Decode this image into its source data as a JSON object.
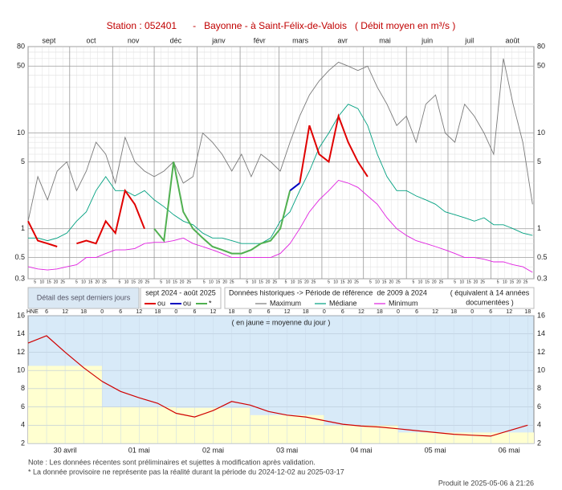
{
  "title": "Station : 052401      -   Bayonne - à Saint-Félix-de-Valois   ( Débit moyen en m³/s )",
  "chart_data": [
    {
      "type": "line",
      "log_scale": true,
      "grid": true,
      "xlim": [
        0,
        365
      ],
      "ylim": [
        0.3,
        80
      ],
      "yticks": [
        0.3,
        0.5,
        1,
        5,
        10,
        50,
        80
      ],
      "minor_yticks": [
        0.4,
        0.6,
        0.7,
        0.8,
        0.9,
        2,
        3,
        4,
        6,
        7,
        8,
        9,
        20,
        30,
        40,
        60,
        70
      ],
      "xticks": [
        {
          "value": 0,
          "label": "sept"
        },
        {
          "value": 30,
          "label": "oct"
        },
        {
          "value": 61,
          "label": "nov"
        },
        {
          "value": 91,
          "label": "déc"
        },
        {
          "value": 122,
          "label": "janv"
        },
        {
          "value": 153,
          "label": "févr"
        },
        {
          "value": 181,
          "label": "mars"
        },
        {
          "value": 212,
          "label": "avr"
        },
        {
          "value": 242,
          "label": "mai"
        },
        {
          "value": 273,
          "label": "juin"
        },
        {
          "value": 303,
          "label": "juil"
        },
        {
          "value": 334,
          "label": "août"
        }
      ],
      "day_ticks": [
        5,
        10,
        15,
        20,
        25
      ],
      "x": [
        0,
        7,
        14,
        21,
        28,
        35,
        42,
        49,
        56,
        63,
        70,
        77,
        84,
        91,
        98,
        105,
        112,
        119,
        126,
        133,
        140,
        147,
        154,
        161,
        168,
        175,
        182,
        189,
        196,
        203,
        210,
        217,
        224,
        231,
        238,
        245,
        252,
        259,
        266,
        273,
        280,
        287,
        294,
        301,
        308,
        315,
        322,
        329,
        336,
        343,
        350,
        357,
        364
      ],
      "legend_title": "sept 2024 - août 2025",
      "reference_title": "Données historiques -> Période de référence  de 2009 à 2024",
      "reference_note": [
        "( équivalent à 14 années",
        "documentées )"
      ],
      "series": [
        {
          "name": "Maximum",
          "color": "#7a7a7a",
          "values": [
            1.2,
            3.5,
            2,
            4,
            5,
            2.5,
            4,
            8,
            6,
            3,
            9,
            5,
            4,
            3.5,
            4,
            5,
            3,
            3.5,
            10,
            8,
            6,
            4,
            6,
            3.5,
            6,
            5,
            4,
            8,
            15,
            25,
            35,
            45,
            55,
            50,
            45,
            50,
            30,
            20,
            12,
            15,
            8,
            20,
            25,
            10,
            8,
            20,
            15,
            10,
            6,
            60,
            20,
            8,
            1.8
          ]
        },
        {
          "name": "Médiane",
          "color": "#00a080",
          "values": [
            0.8,
            0.8,
            0.75,
            0.8,
            0.9,
            1.2,
            1.5,
            2.5,
            3.5,
            2.5,
            2.5,
            2.2,
            2.5,
            2,
            1.7,
            1.4,
            1.2,
            1.1,
            0.9,
            0.8,
            0.8,
            0.75,
            0.7,
            0.7,
            0.7,
            0.8,
            1.2,
            1.5,
            2.5,
            4,
            7,
            10,
            15,
            20,
            18,
            12,
            6,
            3.5,
            2.5,
            2.5,
            2.2,
            2,
            1.8,
            1.5,
            1.4,
            1.3,
            1.2,
            1.3,
            1.1,
            1.1,
            1,
            0.9,
            0.85
          ]
        },
        {
          "name": "Minimum",
          "color": "#e020e0",
          "values": [
            0.4,
            0.38,
            0.37,
            0.38,
            0.4,
            0.42,
            0.5,
            0.5,
            0.55,
            0.6,
            0.6,
            0.62,
            0.7,
            0.72,
            0.72,
            0.75,
            0.8,
            0.7,
            0.65,
            0.6,
            0.55,
            0.5,
            0.5,
            0.5,
            0.5,
            0.5,
            0.55,
            0.7,
            1,
            1.5,
            2,
            2.5,
            3.2,
            3,
            2.7,
            2.2,
            1.8,
            1.3,
            1,
            0.85,
            0.75,
            0.7,
            0.65,
            0.6,
            0.55,
            0.5,
            0.5,
            0.48,
            0.45,
            0.45,
            0.42,
            0.4,
            0.35
          ]
        },
        {
          "name": "ou",
          "color": "#e00000",
          "current": true,
          "values": [
            1.2,
            0.75,
            0.7,
            0.65,
            null,
            0.7,
            0.75,
            0.7,
            1.2,
            0.9,
            2.5,
            1.8,
            1.0,
            null,
            null,
            null,
            null,
            null,
            null,
            null,
            null,
            null,
            null,
            null,
            null,
            null,
            null,
            null,
            3,
            12,
            6,
            5,
            15,
            8,
            5,
            3.5,
            null,
            null,
            null,
            null,
            null,
            null,
            null,
            null,
            null,
            null,
            null,
            null,
            null,
            null,
            null,
            null,
            null
          ]
        },
        {
          "name": "ou",
          "color": "#0000c0",
          "current": true,
          "values": [
            null,
            null,
            null,
            null,
            null,
            null,
            null,
            null,
            null,
            null,
            null,
            null,
            null,
            null,
            null,
            null,
            null,
            null,
            null,
            null,
            null,
            null,
            null,
            null,
            null,
            null,
            null,
            2.5,
            3,
            null,
            null,
            null,
            null,
            null,
            null,
            null,
            null,
            null,
            null,
            null,
            null,
            null,
            null,
            null,
            null,
            null,
            null,
            null,
            null,
            null,
            null,
            null,
            null
          ]
        },
        {
          "name": "*",
          "color": "#50b050",
          "current": true,
          "values": [
            null,
            null,
            null,
            null,
            null,
            null,
            null,
            null,
            null,
            null,
            null,
            null,
            null,
            1.0,
            0.75,
            5,
            1.5,
            1.0,
            0.8,
            0.65,
            0.6,
            0.55,
            0.55,
            0.6,
            0.7,
            0.75,
            1.0,
            2.5,
            null,
            null,
            null,
            null,
            null,
            null,
            null,
            null,
            null,
            null,
            null,
            null,
            null,
            null,
            null,
            null,
            null,
            null,
            null,
            null,
            null,
            null,
            null,
            null,
            null
          ]
        }
      ]
    },
    {
      "type": "line",
      "title": "Détail des sept derniers jours",
      "annotation": "( en jaune = moyenne du jour )",
      "ylabel": "HNE",
      "grid": true,
      "xlim": [
        0,
        164
      ],
      "ylim": [
        2,
        16
      ],
      "yticks": [
        2,
        4,
        6,
        8,
        10,
        12,
        14,
        16
      ],
      "hour_ticks": [
        6,
        12,
        18,
        {
          "value": 24,
          "label": "0"
        },
        {
          "value": 30,
          "label": "6"
        },
        {
          "value": 36,
          "label": "12"
        },
        {
          "value": 42,
          "label": "18"
        },
        {
          "value": 48,
          "label": "0"
        },
        {
          "value": 54,
          "label": "6"
        },
        {
          "value": 60,
          "label": "12"
        },
        {
          "value": 66,
          "label": "18"
        },
        {
          "value": 72,
          "label": "0"
        },
        {
          "value": 78,
          "label": "6"
        },
        {
          "value": 84,
          "label": "12"
        },
        {
          "value": 90,
          "label": "18"
        },
        {
          "value": 96,
          "label": "0"
        },
        {
          "value": 102,
          "label": "6"
        },
        {
          "value": 108,
          "label": "12"
        },
        {
          "value": 114,
          "label": "18"
        },
        {
          "value": 120,
          "label": "0"
        },
        {
          "value": 126,
          "label": "6"
        },
        {
          "value": 132,
          "label": "12"
        },
        {
          "value": 138,
          "label": "18"
        },
        {
          "value": 144,
          "label": "0"
        },
        {
          "value": 150,
          "label": "6"
        },
        {
          "value": 156,
          "label": "12"
        },
        {
          "value": 162,
          "label": "18"
        }
      ],
      "xticks": [
        {
          "value": 12,
          "label": "30 avril"
        },
        {
          "value": 36,
          "label": "01 mai"
        },
        {
          "value": 60,
          "label": "02 mai"
        },
        {
          "value": 84,
          "label": "03 mai"
        },
        {
          "value": 108,
          "label": "04 mai"
        },
        {
          "value": 132,
          "label": "05 mai"
        },
        {
          "value": 156,
          "label": "06 mai"
        }
      ],
      "bars": {
        "color": "#ffffd0",
        "bins": [
          0,
          24,
          48,
          72,
          96,
          120,
          144,
          164
        ],
        "values": [
          10.5,
          6.0,
          5.9,
          5.1,
          4.0,
          3.2,
          3.2
        ]
      },
      "x": [
        0,
        6,
        12,
        18,
        24,
        30,
        36,
        42,
        48,
        54,
        60,
        66,
        72,
        78,
        84,
        90,
        96,
        102,
        108,
        114,
        120,
        126,
        132,
        138,
        144,
        150,
        156,
        162
      ],
      "series": [
        {
          "color": "#d00000",
          "values": [
            13,
            13.8,
            12,
            10.3,
            8.8,
            7.7,
            7,
            6.4,
            5.3,
            4.9,
            5.6,
            6.6,
            6.2,
            5.5,
            5.1,
            4.9,
            4.5,
            4.1,
            3.9,
            3.8,
            3.6,
            3.4,
            3.2,
            3.0,
            2.9,
            2.8,
            3.4,
            4.0
          ]
        }
      ]
    }
  ],
  "notes": [
    "Note : Les données récentes sont préliminaires et sujettes à modification après validation.",
    "* La donnée provisoire ne représente pas la réalité durant la période du 2024-12-02 au 2025-03-17"
  ],
  "produced": "Produit le 2025-05-06 à 21:26"
}
